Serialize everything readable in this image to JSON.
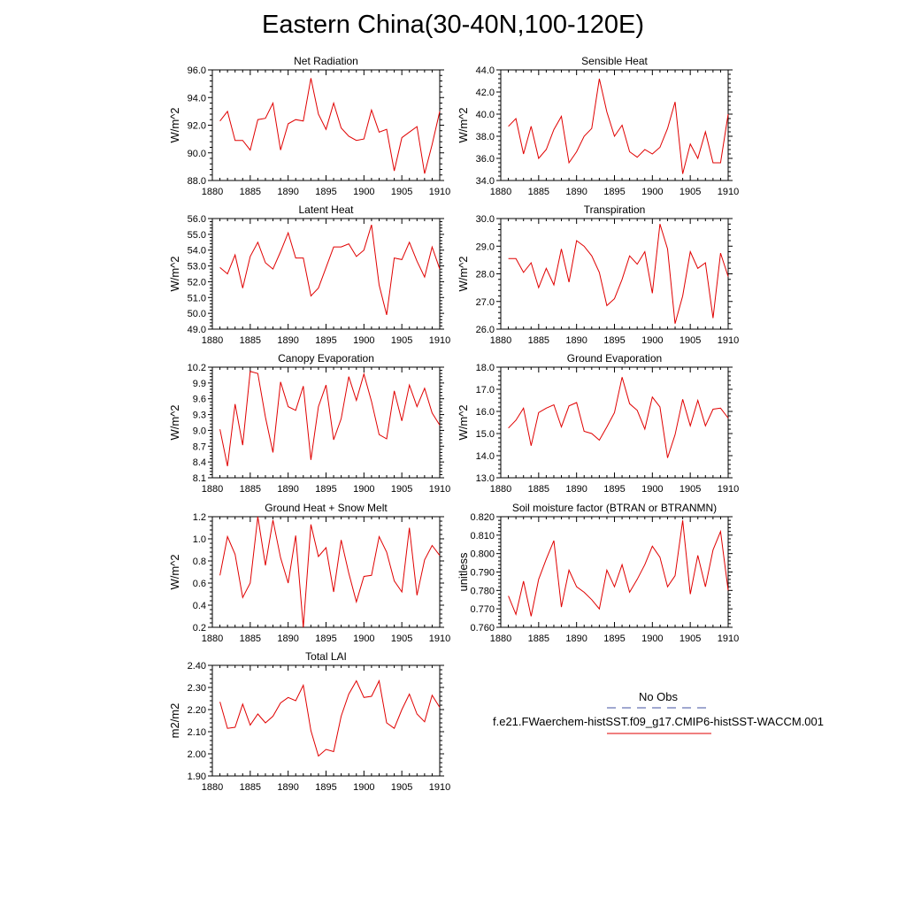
{
  "title": "Eastern China(30-40N,100-120E)",
  "legend": {
    "obs_label": "No Obs",
    "obs_color": "#4050a0",
    "model_label": "f.e21.FWaerchem-histSST.f09_g17.CMIP6-histSST-WACCM.001",
    "model_color": "#e00000"
  },
  "chart_data": [
    {
      "type": "line",
      "title": "Net Radiation",
      "ylabel": "W/m^2",
      "xlim": [
        1880,
        1910
      ],
      "ylim": [
        88.0,
        96.0
      ],
      "xticks": [
        1880,
        1885,
        1890,
        1895,
        1900,
        1905,
        1910
      ],
      "yticks": [
        "88.0",
        "90.0",
        "92.0",
        "94.0",
        "96.0"
      ],
      "x": [
        1881,
        1882,
        1883,
        1884,
        1885,
        1886,
        1887,
        1888,
        1889,
        1890,
        1891,
        1892,
        1893,
        1894,
        1895,
        1896,
        1897,
        1898,
        1899,
        1900,
        1901,
        1902,
        1903,
        1904,
        1905,
        1906,
        1907,
        1908,
        1909,
        1910
      ],
      "series": [
        {
          "values": [
            92.3,
            93.0,
            90.9,
            90.9,
            90.2,
            92.4,
            92.5,
            93.6,
            90.2,
            92.1,
            92.4,
            92.3,
            95.4,
            92.8,
            91.7,
            93.6,
            91.8,
            91.2,
            90.9,
            91.0,
            93.1,
            91.5,
            91.7,
            88.7,
            91.1,
            91.5,
            91.9,
            88.5,
            90.6,
            93.0
          ]
        }
      ]
    },
    {
      "type": "line",
      "title": "Sensible Heat",
      "ylabel": "W/m^2",
      "xlim": [
        1880,
        1910
      ],
      "ylim": [
        34.0,
        44.0
      ],
      "xticks": [
        1880,
        1885,
        1890,
        1895,
        1900,
        1905,
        1910
      ],
      "yticks": [
        "34.0",
        "36.0",
        "38.0",
        "40.0",
        "42.0",
        "44.0"
      ],
      "x": [
        1881,
        1882,
        1883,
        1884,
        1885,
        1886,
        1887,
        1888,
        1889,
        1890,
        1891,
        1892,
        1893,
        1894,
        1895,
        1896,
        1897,
        1898,
        1899,
        1900,
        1901,
        1902,
        1903,
        1904,
        1905,
        1906,
        1907,
        1908,
        1909,
        1910
      ],
      "series": [
        {
          "values": [
            38.9,
            39.6,
            36.4,
            38.9,
            36.0,
            36.8,
            38.6,
            39.8,
            35.6,
            36.6,
            38.0,
            38.7,
            43.2,
            40.2,
            38.0,
            39.0,
            36.6,
            36.1,
            36.8,
            36.4,
            37.0,
            38.7,
            41.1,
            34.6,
            37.3,
            36.0,
            38.4,
            35.6,
            35.6,
            40.0
          ]
        }
      ]
    },
    {
      "type": "line",
      "title": "Latent Heat",
      "ylabel": "W/m^2",
      "xlim": [
        1880,
        1910
      ],
      "ylim": [
        49.0,
        56.0
      ],
      "xticks": [
        1880,
        1885,
        1890,
        1895,
        1900,
        1905,
        1910
      ],
      "yticks": [
        "49.0",
        "50.0",
        "51.0",
        "52.0",
        "53.0",
        "54.0",
        "55.0",
        "56.0"
      ],
      "x": [
        1881,
        1882,
        1883,
        1884,
        1885,
        1886,
        1887,
        1888,
        1889,
        1890,
        1891,
        1892,
        1893,
        1894,
        1895,
        1896,
        1897,
        1898,
        1899,
        1900,
        1901,
        1902,
        1903,
        1904,
        1905,
        1906,
        1907,
        1908,
        1909,
        1910
      ],
      "series": [
        {
          "values": [
            52.9,
            52.5,
            53.7,
            51.6,
            53.6,
            54.5,
            53.2,
            52.8,
            53.9,
            55.1,
            53.5,
            53.5,
            51.1,
            51.6,
            52.9,
            54.2,
            54.2,
            54.4,
            53.6,
            54.0,
            55.6,
            51.8,
            49.9,
            53.5,
            53.4,
            54.5,
            53.3,
            52.3,
            54.2,
            52.8
          ]
        }
      ]
    },
    {
      "type": "line",
      "title": "Transpiration",
      "ylabel": "W/m^2",
      "xlim": [
        1880,
        1910
      ],
      "ylim": [
        26.0,
        30.0
      ],
      "xticks": [
        1880,
        1885,
        1890,
        1895,
        1900,
        1905,
        1910
      ],
      "yticks": [
        "26.0",
        "27.0",
        "28.0",
        "29.0",
        "30.0"
      ],
      "x": [
        1881,
        1882,
        1883,
        1884,
        1885,
        1886,
        1887,
        1888,
        1889,
        1890,
        1891,
        1892,
        1893,
        1894,
        1895,
        1896,
        1897,
        1898,
        1899,
        1900,
        1901,
        1902,
        1903,
        1904,
        1905,
        1906,
        1907,
        1908,
        1909,
        1910
      ],
      "series": [
        {
          "values": [
            28.55,
            28.55,
            28.05,
            28.4,
            27.5,
            28.2,
            27.6,
            28.9,
            27.7,
            29.2,
            29.0,
            28.65,
            28.05,
            26.85,
            27.1,
            27.8,
            28.65,
            28.35,
            28.8,
            27.3,
            29.8,
            28.9,
            26.2,
            27.2,
            28.8,
            28.2,
            28.4,
            26.4,
            28.75,
            27.9
          ]
        }
      ]
    },
    {
      "type": "line",
      "title": "Canopy Evaporation",
      "ylabel": "W/m^2",
      "xlim": [
        1880,
        1910
      ],
      "ylim": [
        8.1,
        10.2
      ],
      "xticks": [
        1880,
        1885,
        1890,
        1895,
        1900,
        1905,
        1910
      ],
      "yticks": [
        "8.1",
        "8.4",
        "8.7",
        "9.0",
        "9.3",
        "9.6",
        "9.9",
        "10.2"
      ],
      "x": [
        1881,
        1882,
        1883,
        1884,
        1885,
        1886,
        1887,
        1888,
        1889,
        1890,
        1891,
        1892,
        1893,
        1894,
        1895,
        1896,
        1897,
        1898,
        1899,
        1900,
        1901,
        1902,
        1903,
        1904,
        1905,
        1906,
        1907,
        1908,
        1909,
        1910
      ],
      "series": [
        {
          "values": [
            9.02,
            8.32,
            9.5,
            8.72,
            10.12,
            10.08,
            9.25,
            8.58,
            9.92,
            9.45,
            9.38,
            9.84,
            8.44,
            9.45,
            9.86,
            8.82,
            9.22,
            10.02,
            9.57,
            10.07,
            9.55,
            8.92,
            8.84,
            9.75,
            9.18,
            9.86,
            9.45,
            9.8,
            9.33,
            9.1
          ]
        }
      ]
    },
    {
      "type": "line",
      "title": "Ground Evaporation",
      "ylabel": "W/m^2",
      "xlim": [
        1880,
        1910
      ],
      "ylim": [
        13.0,
        18.0
      ],
      "xticks": [
        1880,
        1885,
        1890,
        1895,
        1900,
        1905,
        1910
      ],
      "yticks": [
        "13.0",
        "14.0",
        "15.0",
        "16.0",
        "17.0",
        "18.0"
      ],
      "x": [
        1881,
        1882,
        1883,
        1884,
        1885,
        1886,
        1887,
        1888,
        1889,
        1890,
        1891,
        1892,
        1893,
        1894,
        1895,
        1896,
        1897,
        1898,
        1899,
        1900,
        1901,
        1902,
        1903,
        1904,
        1905,
        1906,
        1907,
        1908,
        1909,
        1910
      ],
      "series": [
        {
          "values": [
            15.25,
            15.6,
            16.15,
            14.45,
            15.95,
            16.15,
            16.3,
            15.3,
            16.25,
            16.4,
            15.1,
            15.0,
            14.7,
            15.3,
            15.95,
            17.55,
            16.35,
            16.05,
            15.2,
            16.65,
            16.2,
            13.9,
            14.95,
            16.55,
            15.35,
            16.5,
            15.35,
            16.1,
            16.15,
            15.7
          ]
        }
      ]
    },
    {
      "type": "line",
      "title": "Ground Heat + Snow Melt",
      "ylabel": "W/m^2",
      "xlim": [
        1880,
        1910
      ],
      "ylim": [
        0.2,
        1.2
      ],
      "xticks": [
        1880,
        1885,
        1890,
        1895,
        1900,
        1905,
        1910
      ],
      "yticks": [
        "0.2",
        "0.4",
        "0.6",
        "0.8",
        "1.0",
        "1.2"
      ],
      "x": [
        1881,
        1882,
        1883,
        1884,
        1885,
        1886,
        1887,
        1888,
        1889,
        1890,
        1891,
        1892,
        1893,
        1894,
        1895,
        1896,
        1897,
        1898,
        1899,
        1900,
        1901,
        1902,
        1903,
        1904,
        1905,
        1906,
        1907,
        1908,
        1909,
        1910
      ],
      "series": [
        {
          "values": [
            0.67,
            1.02,
            0.86,
            0.47,
            0.6,
            1.2,
            0.76,
            1.17,
            0.83,
            0.6,
            1.03,
            0.2,
            1.13,
            0.84,
            0.92,
            0.52,
            0.99,
            0.69,
            0.43,
            0.66,
            0.67,
            1.02,
            0.88,
            0.62,
            0.52,
            1.1,
            0.49,
            0.81,
            0.94,
            0.85
          ]
        }
      ]
    },
    {
      "type": "line",
      "title": "Soil moisture factor (BTRAN or BTRANMN)",
      "ylabel": "unitless",
      "xlim": [
        1880,
        1910
      ],
      "ylim": [
        0.76,
        0.82
      ],
      "xticks": [
        1880,
        1885,
        1890,
        1895,
        1900,
        1905,
        1910
      ],
      "yticks": [
        "0.760",
        "0.770",
        "0.780",
        "0.790",
        "0.800",
        "0.810",
        "0.820"
      ],
      "x": [
        1881,
        1882,
        1883,
        1884,
        1885,
        1886,
        1887,
        1888,
        1889,
        1890,
        1891,
        1892,
        1893,
        1894,
        1895,
        1896,
        1897,
        1898,
        1899,
        1900,
        1901,
        1902,
        1903,
        1904,
        1905,
        1906,
        1907,
        1908,
        1909,
        1910
      ],
      "series": [
        {
          "values": [
            0.777,
            0.767,
            0.785,
            0.766,
            0.786,
            0.797,
            0.807,
            0.771,
            0.791,
            0.782,
            0.779,
            0.775,
            0.77,
            0.791,
            0.782,
            0.794,
            0.779,
            0.786,
            0.794,
            0.804,
            0.798,
            0.782,
            0.788,
            0.818,
            0.778,
            0.799,
            0.782,
            0.802,
            0.812,
            0.78
          ]
        }
      ]
    },
    {
      "type": "line",
      "title": "Total LAI",
      "ylabel": "m2/m2",
      "xlim": [
        1880,
        1910
      ],
      "ylim": [
        1.9,
        2.4
      ],
      "xticks": [
        1880,
        1885,
        1890,
        1895,
        1900,
        1905,
        1910
      ],
      "yticks": [
        "1.90",
        "2.00",
        "2.10",
        "2.20",
        "2.30",
        "2.40"
      ],
      "x": [
        1881,
        1882,
        1883,
        1884,
        1885,
        1886,
        1887,
        1888,
        1889,
        1890,
        1891,
        1892,
        1893,
        1894,
        1895,
        1896,
        1897,
        1898,
        1899,
        1900,
        1901,
        1902,
        1903,
        1904,
        1905,
        1906,
        1907,
        1908,
        1909,
        1910
      ],
      "series": [
        {
          "values": [
            2.235,
            2.115,
            2.12,
            2.225,
            2.13,
            2.18,
            2.14,
            2.17,
            2.23,
            2.255,
            2.24,
            2.31,
            2.105,
            1.99,
            2.02,
            2.01,
            2.17,
            2.27,
            2.33,
            2.255,
            2.26,
            2.33,
            2.14,
            2.115,
            2.2,
            2.27,
            2.18,
            2.145,
            2.265,
            2.21
          ]
        }
      ]
    }
  ]
}
